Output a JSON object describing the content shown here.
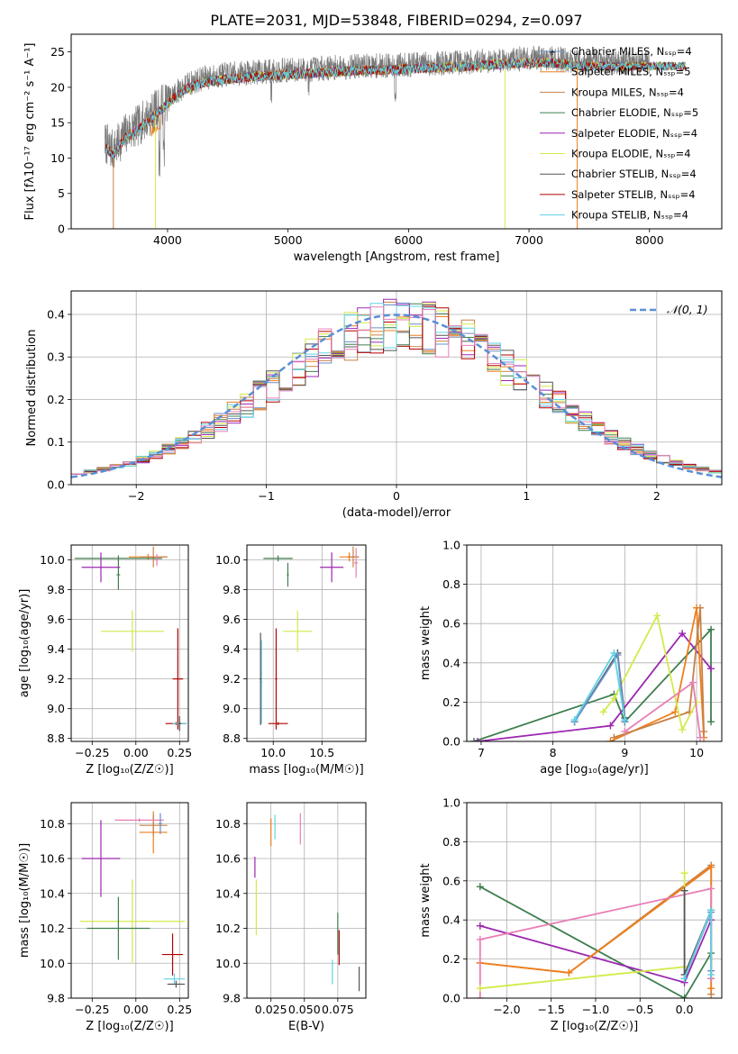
{
  "figure": {
    "title": "PLATE=2031, MJD=53848, FIBERID=0294, z=0.097"
  },
  "chart_data": [
    {
      "id": "spectrum",
      "type": "line",
      "xlabel": "wavelength [Angstrom, rest frame]",
      "ylabel": "Flux [fλ10⁻¹⁷ erg cm⁻² s⁻¹ A⁻¹]",
      "xlim": [
        3200,
        8600
      ],
      "ylim": [
        0,
        27.5
      ],
      "xticks": [
        4000,
        5000,
        6000,
        7000,
        8000
      ],
      "yticks": [
        0,
        5,
        10,
        15,
        20,
        25
      ],
      "grid": false,
      "legend_position": "top-right",
      "series": [
        {
          "name": "Chabrier MILES, N_SSP=4",
          "color": "#6a8ec6"
        },
        {
          "name": "Salpeter MILES, N_SSP=5",
          "color": "#ef7f1c"
        },
        {
          "name": "Kroupa MILES, N_SSP=4",
          "color": "#c88045"
        },
        {
          "name": "Chabrier ELODIE, N_SSP=5",
          "color": "#3f7f4f"
        },
        {
          "name": "Salpeter ELODIE, N_SSP=4",
          "color": "#9c27b0"
        },
        {
          "name": "Kroupa ELODIE, N_SSP=4",
          "color": "#d4ea4a"
        },
        {
          "name": "Chabrier STELIB, N_SSP=4",
          "color": "#555555"
        },
        {
          "name": "Salpeter STELIB, N_SSP=4",
          "color": "#b50000"
        },
        {
          "name": "Kroupa STELIB, N_SSP=4",
          "color": "#5fd3e5"
        }
      ],
      "envelope": {
        "x": [
          3480,
          3550,
          3650,
          3750,
          3850,
          3950,
          4050,
          4150,
          4300,
          4500,
          4700,
          4900,
          5100,
          5300,
          5500,
          5700,
          5900,
          6100,
          6300,
          6500,
          6700,
          6900,
          7100,
          7300,
          7500
        ],
        "y": [
          12.2,
          11.0,
          13.5,
          14.5,
          16.0,
          17.5,
          19.0,
          20.3,
          21.3,
          21.8,
          22.1,
          22.3,
          22.5,
          22.7,
          22.9,
          23.0,
          23.1,
          23.3,
          23.4,
          23.6,
          23.8,
          24.0,
          24.1,
          23.9,
          23.5
        ]
      },
      "observed_extends_to": 8000,
      "model_extends_to": 8300
    },
    {
      "id": "residuals",
      "type": "line",
      "xlabel": "(data-model)/error",
      "ylabel": "Normed distribution",
      "xlim": [
        -2.5,
        2.5
      ],
      "ylim": [
        0,
        0.455
      ],
      "xticks": [
        -2,
        -1,
        0,
        1,
        2
      ],
      "yticks": [
        0.0,
        0.1,
        0.2,
        0.3,
        0.4
      ],
      "grid": true,
      "legend_position": "top-right",
      "reference_curve": {
        "name": "𝒩(0, 1)",
        "mean": 0,
        "sigma": 1,
        "color": "#5b8fd6"
      },
      "bin_width": 0.1,
      "histogram_colors": [
        "#6a8ec6",
        "#ef7f1c",
        "#c88045",
        "#3f7f4f",
        "#9c27b0",
        "#d4ea4a",
        "#555555",
        "#b50000",
        "#5fd3e5",
        "#e87fb6"
      ]
    },
    {
      "id": "age_vs_Z",
      "type": "scatter",
      "xlabel": "Z [log₁₀(Z/Z☉)]",
      "ylabel": "age  [log₁₀(age/yr)]",
      "xlim": [
        -0.37,
        0.3
      ],
      "ylim": [
        8.78,
        10.1
      ],
      "xticks": [
        -0.25,
        0.0,
        0.25
      ],
      "yticks": [
        8.8,
        9.0,
        9.2,
        9.4,
        9.6,
        9.8,
        10.0
      ],
      "grid": true,
      "errorbars": [
        {
          "color": "#ef7f1c",
          "x": 0.07,
          "xerr": 0.11,
          "y": 10.02,
          "yerr": 0.02
        },
        {
          "color": "#c88045",
          "x": 0.1,
          "xerr": 0.08,
          "y": 10.02,
          "yerr": 0.07
        },
        {
          "color": "#3f7f4f",
          "x": -0.1,
          "xerr": 0.25,
          "y": 10.01,
          "yerr": 0.02
        },
        {
          "color": "#3f7f4f",
          "x": -0.1,
          "xerr": 0.01,
          "y": 9.9,
          "yerr": 0.1
        },
        {
          "color": "#9c27b0",
          "x": -0.2,
          "xerr": 0.11,
          "y": 9.95,
          "yerr": 0.1
        },
        {
          "color": "#d4ea4a",
          "x": -0.02,
          "xerr": 0.18,
          "y": 9.52,
          "yerr": 0.14
        },
        {
          "color": "#b50000",
          "x": 0.24,
          "xerr": 0.03,
          "y": 9.2,
          "yerr": 0.34
        },
        {
          "color": "#b50000",
          "x": 0.23,
          "xerr": 0.06,
          "y": 8.9,
          "yerr": 0.01
        },
        {
          "color": "#5fd3e5",
          "x": 0.25,
          "xerr": 0.04,
          "y": 8.9,
          "yerr": 0.03
        },
        {
          "color": "#555555",
          "x": 0.25,
          "xerr": 0.01,
          "y": 8.9,
          "yerr": 0.05
        },
        {
          "color": "#e87fb6",
          "x": 0.12,
          "xerr": 0.01,
          "y": 10.0,
          "yerr": 0.04
        }
      ]
    },
    {
      "id": "age_vs_mass",
      "type": "scatter",
      "xlabel": "mass [log₁₀(M/M☉)]",
      "ylabel": "",
      "xlim": [
        9.73,
        10.95
      ],
      "ylim": [
        8.78,
        10.1
      ],
      "xticks": [
        10.0,
        10.5
      ],
      "yticks": [
        8.8,
        9.0,
        9.2,
        9.4,
        9.6,
        9.8,
        10.0
      ],
      "grid": true,
      "errorbars": [
        {
          "color": "#ef7f1c",
          "x": 10.78,
          "xerr": 0.1,
          "y": 10.02,
          "yerr": 0.03
        },
        {
          "color": "#c88045",
          "x": 10.82,
          "xerr": 0.06,
          "y": 10.02,
          "yerr": 0.07
        },
        {
          "color": "#3f7f4f",
          "x": 10.05,
          "xerr": 0.15,
          "y": 10.01,
          "yerr": 0.02
        },
        {
          "color": "#3f7f4f",
          "x": 10.15,
          "xerr": 0.01,
          "y": 9.9,
          "yerr": 0.08
        },
        {
          "color": "#9c27b0",
          "x": 10.6,
          "xerr": 0.12,
          "y": 9.95,
          "yerr": 0.1
        },
        {
          "color": "#d4ea4a",
          "x": 10.25,
          "xerr": 0.15,
          "y": 9.52,
          "yerr": 0.14
        },
        {
          "color": "#b50000",
          "x": 10.05,
          "xerr": 0.1,
          "y": 8.9,
          "yerr": 0.01
        },
        {
          "color": "#b50000",
          "x": 10.03,
          "xerr": 0.01,
          "y": 9.2,
          "yerr": 0.34
        },
        {
          "color": "#5fd3e5",
          "x": 9.88,
          "xerr": 0.01,
          "y": 9.18,
          "yerr": 0.28
        },
        {
          "color": "#555555",
          "x": 9.87,
          "xerr": 0.01,
          "y": 9.2,
          "yerr": 0.31
        },
        {
          "color": "#e87fb6",
          "x": 10.85,
          "xerr": 0.02,
          "y": 9.98,
          "yerr": 0.1
        }
      ]
    },
    {
      "id": "mass_weight_vs_age",
      "type": "line",
      "xlabel": "age  [log₁₀(age/yr)]",
      "ylabel": "mass weight",
      "xlim": [
        6.8,
        10.35
      ],
      "ylim": [
        0,
        1
      ],
      "xticks": [
        7,
        8,
        9,
        10
      ],
      "yticks": [
        0.0,
        0.2,
        0.4,
        0.6,
        0.8,
        1.0
      ],
      "grid": true,
      "series": [
        {
          "color": "#3f7f4f",
          "x": [
            6.9,
            8.85,
            9.0,
            10.2,
            10.2
          ],
          "y": [
            0.0,
            0.24,
            0.1,
            0.57,
            0.1
          ]
        },
        {
          "color": "#9c27b0",
          "x": [
            6.95,
            8.8,
            9.8,
            10.2
          ],
          "y": [
            0.0,
            0.08,
            0.55,
            0.37
          ]
        },
        {
          "color": "#ef7f1c",
          "x": [
            8.8,
            9.7,
            10.0,
            10.1
          ],
          "y": [
            0.0,
            0.15,
            0.68,
            0.02
          ]
        },
        {
          "color": "#c88045",
          "x": [
            8.85,
            9.9,
            10.05,
            10.1
          ],
          "y": [
            0.02,
            0.15,
            0.68,
            0.05
          ]
        },
        {
          "color": "#d4ea4a",
          "x": [
            8.7,
            8.85,
            9.45,
            9.8,
            10.0
          ],
          "y": [
            0.15,
            0.22,
            0.64,
            0.06,
            0.2
          ]
        },
        {
          "color": "#e87fb6",
          "x": [
            9.0,
            9.95,
            10.05
          ],
          "y": [
            0.05,
            0.3,
            0.02
          ]
        },
        {
          "color": "#555555",
          "x": [
            8.3,
            8.9,
            9.0
          ],
          "y": [
            0.1,
            0.45,
            0.12
          ]
        },
        {
          "color": "#6a8ec6",
          "x": [
            8.3,
            8.9,
            9.0
          ],
          "y": [
            0.1,
            0.44,
            0.1
          ]
        },
        {
          "color": "#5fd3e5",
          "x": [
            8.3,
            8.85,
            9.0
          ],
          "y": [
            0.11,
            0.45,
            0.11
          ]
        }
      ]
    },
    {
      "id": "mass_vs_Z",
      "type": "scatter",
      "xlabel": "Z [log₁₀(Z/Z☉)]",
      "ylabel": "mass [log₁₀(M/M☉)]",
      "xlim": [
        -0.37,
        0.3
      ],
      "ylim": [
        9.8,
        10.92
      ],
      "xticks": [
        -0.25,
        0.0,
        0.25
      ],
      "yticks": [
        9.8,
        10.0,
        10.2,
        10.4,
        10.6,
        10.8
      ],
      "grid": true,
      "errorbars": [
        {
          "color": "#ef7f1c",
          "x": 0.1,
          "xerr": 0.08,
          "y": 10.75,
          "yerr": 0.12
        },
        {
          "color": "#c88045",
          "x": 0.1,
          "xerr": 0.08,
          "y": 10.79,
          "yerr": 0.06
        },
        {
          "color": "#e87fb6",
          "x": 0.02,
          "xerr": 0.14,
          "y": 10.82,
          "yerr": 0.01
        },
        {
          "color": "#6a8ec6",
          "x": 0.14,
          "xerr": 0.01,
          "y": 10.8,
          "yerr": 0.06
        },
        {
          "color": "#9c27b0",
          "x": -0.2,
          "xerr": 0.11,
          "y": 10.6,
          "yerr": 0.22
        },
        {
          "color": "#d4ea4a",
          "x": -0.02,
          "xerr": 0.3,
          "y": 10.24,
          "yerr": 0.24
        },
        {
          "color": "#3f7f4f",
          "x": -0.1,
          "xerr": 0.18,
          "y": 10.2,
          "yerr": 0.18
        },
        {
          "color": "#b50000",
          "x": 0.21,
          "xerr": 0.06,
          "y": 10.05,
          "yerr": 0.12
        },
        {
          "color": "#5fd3e5",
          "x": 0.22,
          "xerr": 0.06,
          "y": 9.91,
          "yerr": 0.03
        },
        {
          "color": "#555555",
          "x": 0.23,
          "xerr": 0.05,
          "y": 9.88,
          "yerr": 0.02
        }
      ]
    },
    {
      "id": "mass_vs_ebv",
      "type": "scatter",
      "xlabel": "E(B-V)",
      "ylabel": "",
      "xlim": [
        0.007,
        0.096
      ],
      "ylim": [
        9.8,
        10.92
      ],
      "xticks": [
        0.025,
        0.05,
        0.075
      ],
      "xtick_labels": [
        "0.025",
        "0.050",
        "0.075"
      ],
      "yticks": [
        9.8,
        10.0,
        10.2,
        10.4,
        10.6,
        10.8
      ],
      "grid": true,
      "errorbars": [
        {
          "color": "#9c27b0",
          "x": 0.013,
          "xerr": 0.0,
          "y": 10.55,
          "yerr": 0.06
        },
        {
          "color": "#d4ea4a",
          "x": 0.014,
          "xerr": 0.0,
          "y": 10.32,
          "yerr": 0.16
        },
        {
          "color": "#ef7f1c",
          "x": 0.025,
          "xerr": 0.0,
          "y": 10.75,
          "yerr": 0.08
        },
        {
          "color": "#5fd3e5",
          "x": 0.028,
          "xerr": 0.0,
          "y": 10.78,
          "yerr": 0.07
        },
        {
          "color": "#e87fb6",
          "x": 0.047,
          "xerr": 0.0,
          "y": 10.77,
          "yerr": 0.09
        },
        {
          "color": "#3f7f4f",
          "x": 0.075,
          "xerr": 0.0,
          "y": 10.17,
          "yerr": 0.12
        },
        {
          "color": "#b50000",
          "x": 0.076,
          "xerr": 0.0,
          "y": 10.09,
          "yerr": 0.1
        },
        {
          "color": "#5fd3e5",
          "x": 0.071,
          "xerr": 0.0,
          "y": 9.95,
          "yerr": 0.07
        },
        {
          "color": "#555555",
          "x": 0.091,
          "xerr": 0.0,
          "y": 9.91,
          "yerr": 0.07
        }
      ]
    },
    {
      "id": "mass_weight_vs_Z",
      "type": "line",
      "xlabel": "Z [log₁₀(Z/Z☉)]",
      "ylabel": "mass weight",
      "xlim": [
        -2.45,
        0.42
      ],
      "ylim": [
        0,
        1
      ],
      "xticks": [
        -2.0,
        -1.5,
        -1.0,
        -0.5,
        0.0
      ],
      "yticks": [
        0.0,
        0.2,
        0.4,
        0.6,
        0.8,
        1.0
      ],
      "grid": true,
      "series": [
        {
          "color": "#3f7f4f",
          "x": [
            -2.3,
            0.0,
            0.3,
            0.3
          ],
          "y": [
            0.57,
            0.0,
            0.23,
            0.1
          ]
        },
        {
          "color": "#9c27b0",
          "x": [
            -2.3,
            0.0,
            0.3
          ],
          "y": [
            0.37,
            0.08,
            0.4
          ]
        },
        {
          "color": "#c88045",
          "x": [
            -2.3,
            -1.3,
            0.3,
            0.3
          ],
          "y": [
            0.18,
            0.13,
            0.68,
            0.02
          ]
        },
        {
          "color": "#ef7f1c",
          "x": [
            -2.3,
            -1.3,
            0.3,
            0.3
          ],
          "y": [
            0.18,
            0.13,
            0.67,
            0.05
          ]
        },
        {
          "color": "#e87fb6",
          "x": [
            -2.3,
            -2.3,
            0.3,
            0.3
          ],
          "y": [
            0.0,
            0.3,
            0.56,
            0.1
          ]
        },
        {
          "color": "#d4ea4a",
          "x": [
            -2.3,
            0.0,
            0.0
          ],
          "y": [
            0.05,
            0.16,
            0.64
          ]
        },
        {
          "color": "#555555",
          "x": [
            0.0,
            0.0,
            0.3
          ],
          "y": [
            0.55,
            0.12,
            0.45
          ]
        },
        {
          "color": "#6a8ec6",
          "x": [
            0.0,
            0.3,
            0.3
          ],
          "y": [
            0.1,
            0.44,
            0.14
          ]
        },
        {
          "color": "#5fd3e5",
          "x": [
            0.0,
            0.3,
            0.3
          ],
          "y": [
            0.1,
            0.45,
            0.12
          ]
        }
      ]
    }
  ]
}
